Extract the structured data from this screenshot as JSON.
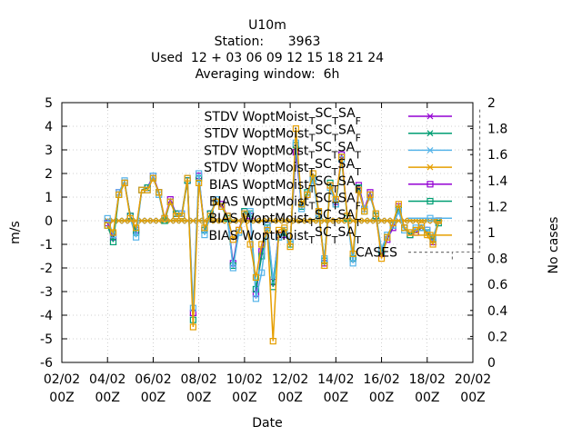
{
  "chart_data": {
    "type": "line",
    "title_lines": [
      "U10m",
      "Station:      3963",
      "Used  12 + 03 06 09 12 15 18 21 24",
      "Averaging window:  6h"
    ],
    "xlabel": "Date",
    "ylabel": "m/s",
    "y2label": "No cases",
    "ylim": [
      -6,
      5
    ],
    "y2lim": [
      0,
      2
    ],
    "xlim": [
      0,
      18
    ],
    "yticks": [
      "-6",
      "-5",
      "-4",
      "-3",
      "-2",
      "-1",
      "0",
      "1",
      "2",
      "3",
      "4",
      "5"
    ],
    "y2ticks": [
      "0",
      "0.2",
      "0.4",
      "0.6",
      "0.8",
      "1",
      "1.2",
      "1.4",
      "1.6",
      "1.8",
      "2"
    ],
    "xticks": [
      {
        "l1": "02/02",
        "l2": "00Z"
      },
      {
        "l1": "04/02",
        "l2": "00Z"
      },
      {
        "l1": "06/02",
        "l2": "00Z"
      },
      {
        "l1": "08/02",
        "l2": "00Z"
      },
      {
        "l1": "10/02",
        "l2": "00Z"
      },
      {
        "l1": "12/02",
        "l2": "00Z"
      },
      {
        "l1": "14/02",
        "l2": "00Z"
      },
      {
        "l1": "16/02",
        "l2": "00Z"
      },
      {
        "l1": "18/02",
        "l2": "00Z"
      },
      {
        "l1": "20/02",
        "l2": "00Z"
      }
    ],
    "grid": true,
    "legend_position": "top-right",
    "x": [
      2.0,
      2.25,
      2.5,
      2.75,
      3.0,
      3.25,
      3.5,
      3.75,
      4.0,
      4.25,
      4.5,
      4.75,
      5.0,
      5.25,
      5.5,
      5.75,
      6.0,
      6.25,
      6.5,
      6.75,
      7.0,
      7.25,
      7.5,
      7.75,
      8.0,
      8.25,
      8.5,
      8.75,
      9.0,
      9.25,
      9.5,
      9.75,
      10.0,
      10.25,
      10.5,
      10.75,
      11.0,
      11.25,
      11.5,
      11.75,
      12.0,
      12.25,
      12.5,
      12.75,
      13.0,
      13.25,
      13.5,
      13.75,
      14.0,
      14.25,
      14.5,
      14.75,
      15.0,
      15.25,
      15.5,
      15.75,
      16.0,
      16.25,
      16.5
    ],
    "series": [
      {
        "name": "STDV WoptMoist_TSC_TSA_F",
        "color": "#9400d3",
        "marker": "x",
        "values": [
          0,
          0,
          0,
          0,
          0,
          0,
          0,
          0,
          0,
          0,
          0,
          0,
          0,
          0,
          0,
          0,
          0,
          0,
          0,
          0,
          0,
          0,
          0,
          0,
          0,
          0,
          0,
          0,
          0,
          0,
          0,
          0,
          0,
          0,
          0,
          0,
          0,
          0,
          0,
          0,
          0,
          0,
          0,
          0,
          0,
          0,
          0,
          0,
          0,
          0,
          0,
          0,
          0,
          0,
          0,
          0,
          0,
          0,
          0
        ]
      },
      {
        "name": "STDV WoptMoist_TSC_TSA_F",
        "color": "#009e73",
        "marker": "x",
        "values": [
          0,
          0,
          0,
          0,
          0,
          0,
          0,
          0,
          0,
          0,
          0,
          0,
          0,
          0,
          0,
          0,
          0,
          0,
          0,
          0,
          0,
          0,
          0,
          0,
          0,
          0,
          0,
          0,
          0,
          0,
          0,
          0,
          0,
          0,
          0,
          0,
          0,
          0,
          0,
          0,
          0,
          0,
          0,
          0,
          0,
          0,
          0,
          0,
          0,
          0,
          0,
          0,
          0,
          0,
          0,
          0,
          0,
          0,
          0
        ]
      },
      {
        "name": "STDV WoptMoist_TSC_TSA_T",
        "color": "#56b4e9",
        "marker": "x",
        "values": [
          0,
          0,
          0,
          0,
          0,
          0,
          0,
          0,
          0,
          0,
          0,
          0,
          0,
          0,
          0,
          0,
          0,
          0,
          0,
          0,
          0,
          0,
          0,
          0,
          0,
          0,
          0,
          0,
          0,
          0,
          0,
          0,
          0,
          0,
          0,
          0,
          0,
          0,
          0,
          0,
          0,
          0,
          0,
          0,
          0,
          0,
          0,
          0,
          0,
          0,
          0,
          0,
          0,
          0,
          0,
          0,
          0,
          0,
          0
        ]
      },
      {
        "name": "STDV WoptMoist_TSC_TSA_T",
        "color": "#e69f00",
        "marker": "x",
        "values": [
          0,
          0,
          0,
          0,
          0,
          0,
          0,
          0,
          0,
          0,
          0,
          0,
          0,
          0,
          0,
          0,
          0,
          0,
          0,
          0,
          0,
          0,
          0,
          0,
          0,
          0,
          0,
          0,
          0,
          0,
          0,
          0,
          0,
          0,
          0,
          0,
          0,
          0,
          0,
          0,
          0,
          0,
          0,
          0,
          0,
          0,
          0,
          0,
          0,
          0,
          0,
          0,
          0,
          0,
          0,
          0,
          0,
          0,
          0
        ]
      },
      {
        "name": "BIAS WoptMoist_TSC_TSA_F",
        "color": "#9400d3",
        "marker": "square",
        "values": [
          -0.1,
          -0.7,
          1.2,
          1.6,
          0.2,
          -0.4,
          1.3,
          1.4,
          1.9,
          1.2,
          0.1,
          0.9,
          0.3,
          0.3,
          1.7,
          -3.9,
          1.9,
          -0.4,
          0.3,
          0.8,
          0.7,
          0.2,
          -1.8,
          -0.4,
          0.4,
          0.2,
          -3.1,
          -1.3,
          -0.2,
          -2.6,
          -0.6,
          -0.6,
          -0.9,
          2.9,
          0.6,
          1.1,
          1.8,
          0.3,
          -1.8,
          1.5,
          0.8,
          2.8,
          0.2,
          -1.6,
          1.5,
          0.5,
          1.2,
          0.2,
          -1.4,
          -0.8,
          -0.3,
          0.6,
          -0.3,
          -0.6,
          -0.5,
          -0.3,
          -0.4,
          -0.9,
          0.0
        ]
      },
      {
        "name": "BIAS WoptMoist_TSC_TSA_F",
        "color": "#009e73",
        "marker": "square",
        "values": [
          -0.2,
          -0.9,
          1.1,
          1.6,
          0.2,
          -0.5,
          1.3,
          1.4,
          1.8,
          1.2,
          0.0,
          0.8,
          0.3,
          0.2,
          1.7,
          -4.2,
          1.8,
          -0.4,
          0.3,
          0.8,
          0.6,
          0.1,
          -1.9,
          -0.5,
          0.4,
          0.3,
          -2.9,
          -1.5,
          -0.3,
          -2.8,
          -0.7,
          -0.5,
          -1.0,
          3.2,
          0.6,
          1.2,
          1.8,
          0.3,
          -1.7,
          1.6,
          0.7,
          2.7,
          0.1,
          -1.6,
          1.4,
          0.4,
          1.1,
          0.2,
          -1.3,
          -0.7,
          -0.2,
          0.5,
          -0.3,
          -0.6,
          -0.4,
          -0.3,
          -0.5,
          -0.8,
          -0.1
        ]
      },
      {
        "name": "BIAS WoptMoist_TSC_TSA_T",
        "color": "#56b4e9",
        "marker": "square",
        "values": [
          0.1,
          -0.6,
          1.2,
          1.7,
          0.1,
          -0.7,
          1.3,
          1.3,
          1.9,
          1.1,
          0.1,
          0.8,
          0.2,
          0.3,
          1.8,
          -3.7,
          2.0,
          -0.6,
          0.2,
          0.9,
          0.6,
          0.2,
          -2.0,
          -0.5,
          0.3,
          0.4,
          -3.3,
          -2.2,
          -0.2,
          -2.5,
          -0.7,
          -0.4,
          -0.9,
          3.3,
          0.5,
          1.1,
          1.7,
          0.2,
          -1.6,
          1.4,
          0.7,
          2.6,
          0.2,
          -1.8,
          1.3,
          0.5,
          1.0,
          0.3,
          -1.2,
          -0.6,
          -0.2,
          0.4,
          -0.4,
          -0.5,
          -0.3,
          -0.3,
          -0.4,
          -0.7,
          0.0
        ]
      },
      {
        "name": "BIAS WoptMoist_TSC_TSA_T",
        "color": "#e69f00",
        "marker": "square",
        "values": [
          -0.2,
          -0.5,
          1.1,
          1.6,
          0.1,
          -0.3,
          1.3,
          1.3,
          1.8,
          1.2,
          0.1,
          0.8,
          0.2,
          0.2,
          1.8,
          -4.5,
          1.6,
          -0.3,
          0.2,
          0.8,
          0.6,
          0.2,
          -0.8,
          -0.4,
          0.3,
          -1.0,
          -2.4,
          -1.0,
          -0.4,
          -5.1,
          -0.4,
          -0.3,
          -1.1,
          3.9,
          0.7,
          1.1,
          2.0,
          0.4,
          -1.9,
          1.5,
          0.9,
          2.7,
          0.2,
          -1.4,
          1.3,
          0.4,
          1.1,
          0.3,
          -1.6,
          -0.7,
          -0.1,
          0.7,
          -0.3,
          -0.5,
          -0.4,
          -0.2,
          -0.6,
          -1.0,
          0.0
        ]
      },
      {
        "name": "CASES",
        "color": "#777777",
        "axis": "y2",
        "dashed": true,
        "x_range": [
          17.1,
          18.3
        ],
        "value": 0.85
      }
    ]
  }
}
